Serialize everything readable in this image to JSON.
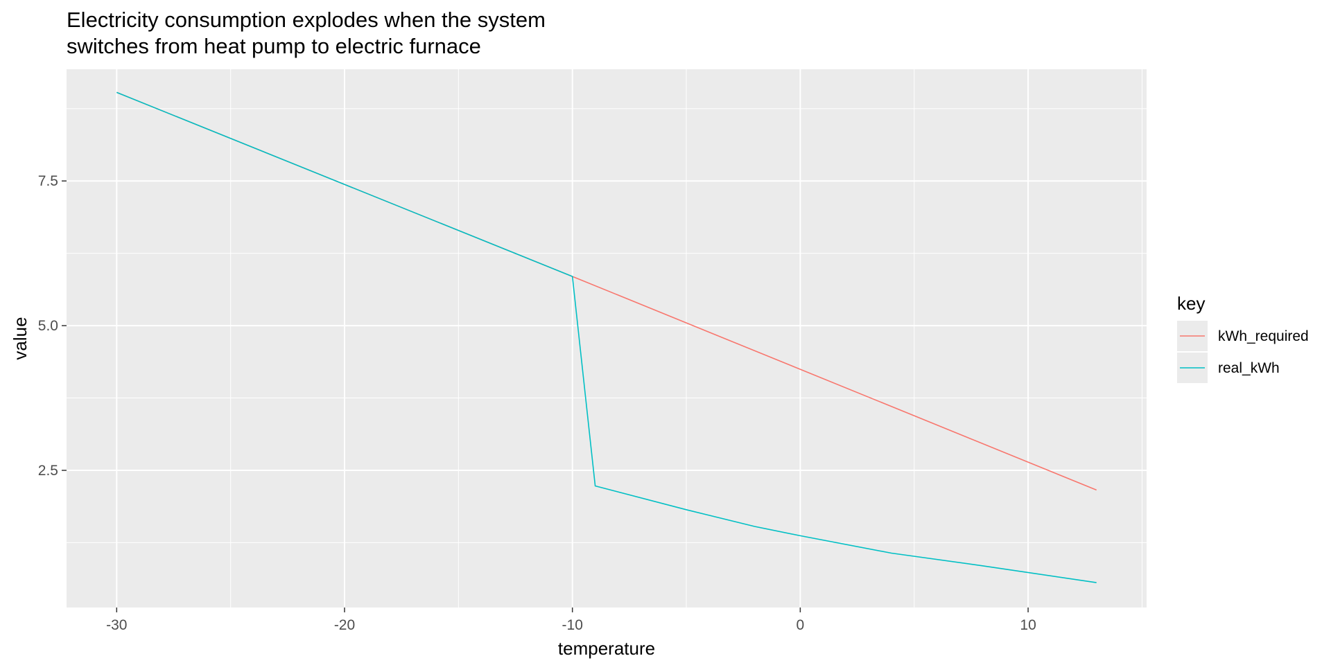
{
  "chart_data": {
    "type": "line",
    "title_lines": [
      "Electricity consumption explodes when the system",
      "switches from heat pump to electric furnace"
    ],
    "xlabel": "temperature",
    "ylabel": "value",
    "xlim": [
      -32.2,
      15.2
    ],
    "ylim": [
      0.13,
      9.43
    ],
    "x_ticks": [
      -30,
      -20,
      -10,
      0,
      10
    ],
    "x_tick_labels": [
      "-30",
      "-20",
      "-10",
      "0",
      "10"
    ],
    "y_ticks": [
      2.5,
      5.0,
      7.5
    ],
    "y_tick_labels": [
      "2.5",
      "5.0",
      "7.5"
    ],
    "grid": true,
    "legend": {
      "title": "key",
      "placement": "right"
    },
    "series": [
      {
        "name": "kWh_required",
        "color": "#F8766D",
        "x": [
          -30,
          -10,
          13
        ],
        "y": [
          9.03,
          5.85,
          2.16
        ]
      },
      {
        "name": "real_kWh",
        "color": "#00BFC4",
        "x": [
          -30,
          -10,
          -9,
          -5,
          -2,
          0,
          4,
          8,
          13
        ],
        "y": [
          9.03,
          5.85,
          2.23,
          1.82,
          1.53,
          1.37,
          1.07,
          0.85,
          0.56
        ]
      }
    ]
  }
}
